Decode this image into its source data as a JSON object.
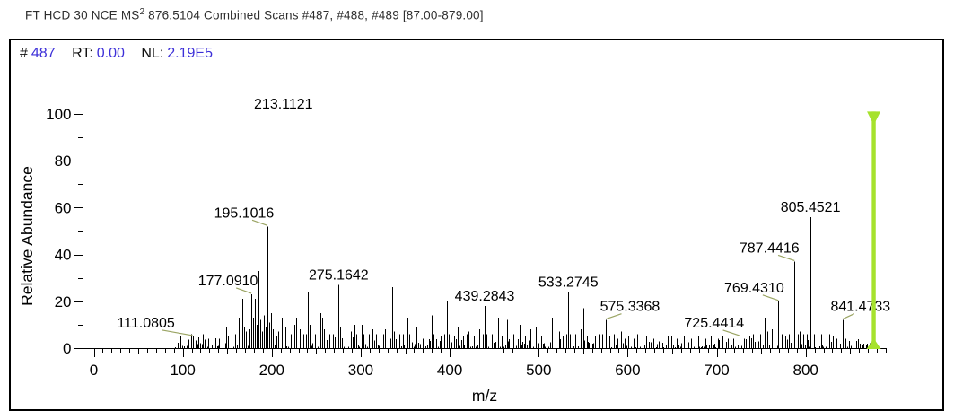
{
  "window": {
    "title_pre": "FT HCD 30 NCE MS",
    "title_sup": "2",
    "title_post": " 876.5104 Combined Scans #487, #488, #489 [87.00-879.00]"
  },
  "scan_info": {
    "hash": "#",
    "scan_number": "487",
    "rt_label": "RT:",
    "rt_value": "0.00",
    "nl_label": "NL:",
    "nl_value": "2.19E5"
  },
  "colors": {
    "annotation_blue": "#3c2fd8",
    "peak_black": "#000000",
    "leader_olive": "#9aa463",
    "precursor_green": "#a6e22d",
    "axis_black": "#000000",
    "title_text": "#2e2e2e"
  },
  "chart_data": {
    "type": "bar",
    "subtype": "mass-spectrum-stick-plot",
    "title": "",
    "xlabel": "m/z",
    "ylabel": "Relative Abundance",
    "xlim": [
      0,
      890
    ],
    "ylim": [
      0,
      100
    ],
    "grid": false,
    "legend": "none",
    "x_major_ticks": [
      0,
      100,
      200,
      300,
      400,
      500,
      600,
      700,
      800
    ],
    "x_minor_step": 10,
    "y_major_ticks": [
      0,
      20,
      40,
      60,
      80,
      100
    ],
    "y_minor_step": 10,
    "precursor_marker": {
      "mz": 876.5104,
      "height_pct": 101
    },
    "labeled_peaks": [
      {
        "mz": 111.0805,
        "pct": 5,
        "label": "111.0805",
        "dx": -52
      },
      {
        "mz": 177.091,
        "pct": 23,
        "label": "177.0910",
        "dx": -26
      },
      {
        "mz": 195.1016,
        "pct": 52,
        "label": "195.1016",
        "dx": -26
      },
      {
        "mz": 213.1121,
        "pct": 100,
        "label": "213.1121",
        "dx": 0
      },
      {
        "mz": 275.1642,
        "pct": 27,
        "label": "275.1642",
        "dx": 0
      },
      {
        "mz": 439.2843,
        "pct": 18,
        "label": "439.2843",
        "dx": 0
      },
      {
        "mz": 533.2745,
        "pct": 24,
        "label": "533.2745",
        "dx": 0
      },
      {
        "mz": 575.3368,
        "pct": 12,
        "label": "575.3368",
        "dx": 27
      },
      {
        "mz": 725.4414,
        "pct": 5,
        "label": "725.4414",
        "dx": -28
      },
      {
        "mz": 769.431,
        "pct": 20,
        "label": "769.4310",
        "dx": -27
      },
      {
        "mz": 787.4416,
        "pct": 37,
        "label": "787.4416",
        "dx": -28
      },
      {
        "mz": 805.4521,
        "pct": 56,
        "label": "805.4521",
        "dx": 0
      },
      {
        "mz": 841.4733,
        "pct": 12,
        "label": "841.4733",
        "dx": 20
      }
    ],
    "unlabeled_peaks": [
      [
        109,
        6
      ],
      [
        123,
        6
      ],
      [
        129,
        4
      ],
      [
        135,
        8
      ],
      [
        141,
        4
      ],
      [
        145,
        6
      ],
      [
        149,
        9
      ],
      [
        151,
        5
      ],
      [
        155,
        7
      ],
      [
        159,
        6
      ],
      [
        163,
        13
      ],
      [
        165,
        8
      ],
      [
        167,
        21
      ],
      [
        169,
        9
      ],
      [
        171,
        7
      ],
      [
        175,
        8
      ],
      [
        179,
        13
      ],
      [
        181,
        21
      ],
      [
        183,
        10
      ],
      [
        185,
        33
      ],
      [
        187,
        12
      ],
      [
        189,
        7
      ],
      [
        191,
        14
      ],
      [
        193,
        9
      ],
      [
        197,
        11
      ],
      [
        199,
        15
      ],
      [
        201,
        8
      ],
      [
        205,
        5
      ],
      [
        207,
        7
      ],
      [
        211,
        13
      ],
      [
        215,
        9
      ],
      [
        221,
        6
      ],
      [
        225,
        10
      ],
      [
        227,
        13
      ],
      [
        231,
        8
      ],
      [
        235,
        6
      ],
      [
        239,
        6
      ],
      [
        241,
        24
      ],
      [
        243,
        10
      ],
      [
        249,
        6
      ],
      [
        253,
        9
      ],
      [
        255,
        15
      ],
      [
        257,
        13
      ],
      [
        259,
        8
      ],
      [
        265,
        6
      ],
      [
        269,
        6
      ],
      [
        273,
        7
      ],
      [
        277,
        9
      ],
      [
        283,
        6
      ],
      [
        289,
        7
      ],
      [
        293,
        10
      ],
      [
        295,
        6
      ],
      [
        301,
        10
      ],
      [
        303,
        6
      ],
      [
        309,
        6
      ],
      [
        313,
        8
      ],
      [
        317,
        6
      ],
      [
        325,
        6
      ],
      [
        327,
        8
      ],
      [
        331,
        6
      ],
      [
        335,
        26
      ],
      [
        337,
        7
      ],
      [
        343,
        6
      ],
      [
        347,
        6
      ],
      [
        353,
        13
      ],
      [
        355,
        6
      ],
      [
        363,
        9
      ],
      [
        371,
        8
      ],
      [
        380,
        14
      ],
      [
        382,
        6
      ],
      [
        390,
        5
      ],
      [
        394,
        6
      ],
      [
        397,
        20
      ],
      [
        399,
        6
      ],
      [
        405,
        5
      ],
      [
        409,
        9
      ],
      [
        415,
        5
      ],
      [
        419,
        6
      ],
      [
        421,
        7
      ],
      [
        427,
        5
      ],
      [
        433,
        8
      ],
      [
        437,
        6
      ],
      [
        441,
        6
      ],
      [
        447,
        6
      ],
      [
        454,
        13
      ],
      [
        458,
        5
      ],
      [
        464,
        12
      ],
      [
        472,
        6
      ],
      [
        479,
        10
      ],
      [
        485,
        5
      ],
      [
        491,
        8
      ],
      [
        497,
        9
      ],
      [
        503,
        5
      ],
      [
        509,
        6
      ],
      [
        515,
        13
      ],
      [
        519,
        5
      ],
      [
        523,
        7
      ],
      [
        527,
        5
      ],
      [
        531,
        6
      ],
      [
        535,
        6
      ],
      [
        541,
        6
      ],
      [
        547,
        8
      ],
      [
        550,
        17
      ],
      [
        554,
        5
      ],
      [
        558,
        8
      ],
      [
        563,
        5
      ],
      [
        567,
        6
      ],
      [
        571,
        6
      ],
      [
        579,
        5
      ],
      [
        584,
        6
      ],
      [
        589,
        4
      ],
      [
        593,
        7
      ],
      [
        597,
        4
      ],
      [
        601,
        5
      ],
      [
        607,
        4
      ],
      [
        611,
        6
      ],
      [
        617,
        4
      ],
      [
        621,
        5
      ],
      [
        629,
        4
      ],
      [
        637,
        5
      ],
      [
        645,
        5
      ],
      [
        649,
        5
      ],
      [
        655,
        4
      ],
      [
        663,
        5
      ],
      [
        671,
        4
      ],
      [
        679,
        5
      ],
      [
        687,
        4
      ],
      [
        693,
        5
      ],
      [
        701,
        4
      ],
      [
        707,
        5
      ],
      [
        713,
        4
      ],
      [
        719,
        4
      ],
      [
        731,
        4
      ],
      [
        737,
        5
      ],
      [
        741,
        6
      ],
      [
        745,
        10
      ],
      [
        749,
        6
      ],
      [
        754,
        13
      ],
      [
        757,
        7
      ],
      [
        762,
        8
      ],
      [
        765,
        6
      ],
      [
        773,
        6
      ],
      [
        777,
        5
      ],
      [
        781,
        6
      ],
      [
        791,
        6
      ],
      [
        793,
        7
      ],
      [
        797,
        6
      ],
      [
        801,
        6
      ],
      [
        809,
        6
      ],
      [
        813,
        5
      ],
      [
        817,
        6
      ],
      [
        823.4628,
        47
      ],
      [
        827,
        6
      ],
      [
        831,
        5
      ],
      [
        835,
        4
      ],
      [
        845,
        4
      ],
      [
        849,
        3
      ],
      [
        853,
        3
      ],
      [
        857,
        3
      ],
      [
        861,
        2
      ],
      [
        865,
        2
      ],
      [
        869,
        2
      ]
    ],
    "noise": {
      "seed": 1487,
      "start": 88,
      "end": 874,
      "min_gap": 0.8,
      "max_gap": 3.0,
      "min_h": 0.5,
      "max_h": 4.6,
      "envelope": [
        [
          95,
          0.6
        ],
        [
          330,
          1.15
        ],
        [
          560,
          1.0
        ],
        [
          730,
          0.75
        ],
        [
          890,
          0.95
        ]
      ]
    }
  }
}
